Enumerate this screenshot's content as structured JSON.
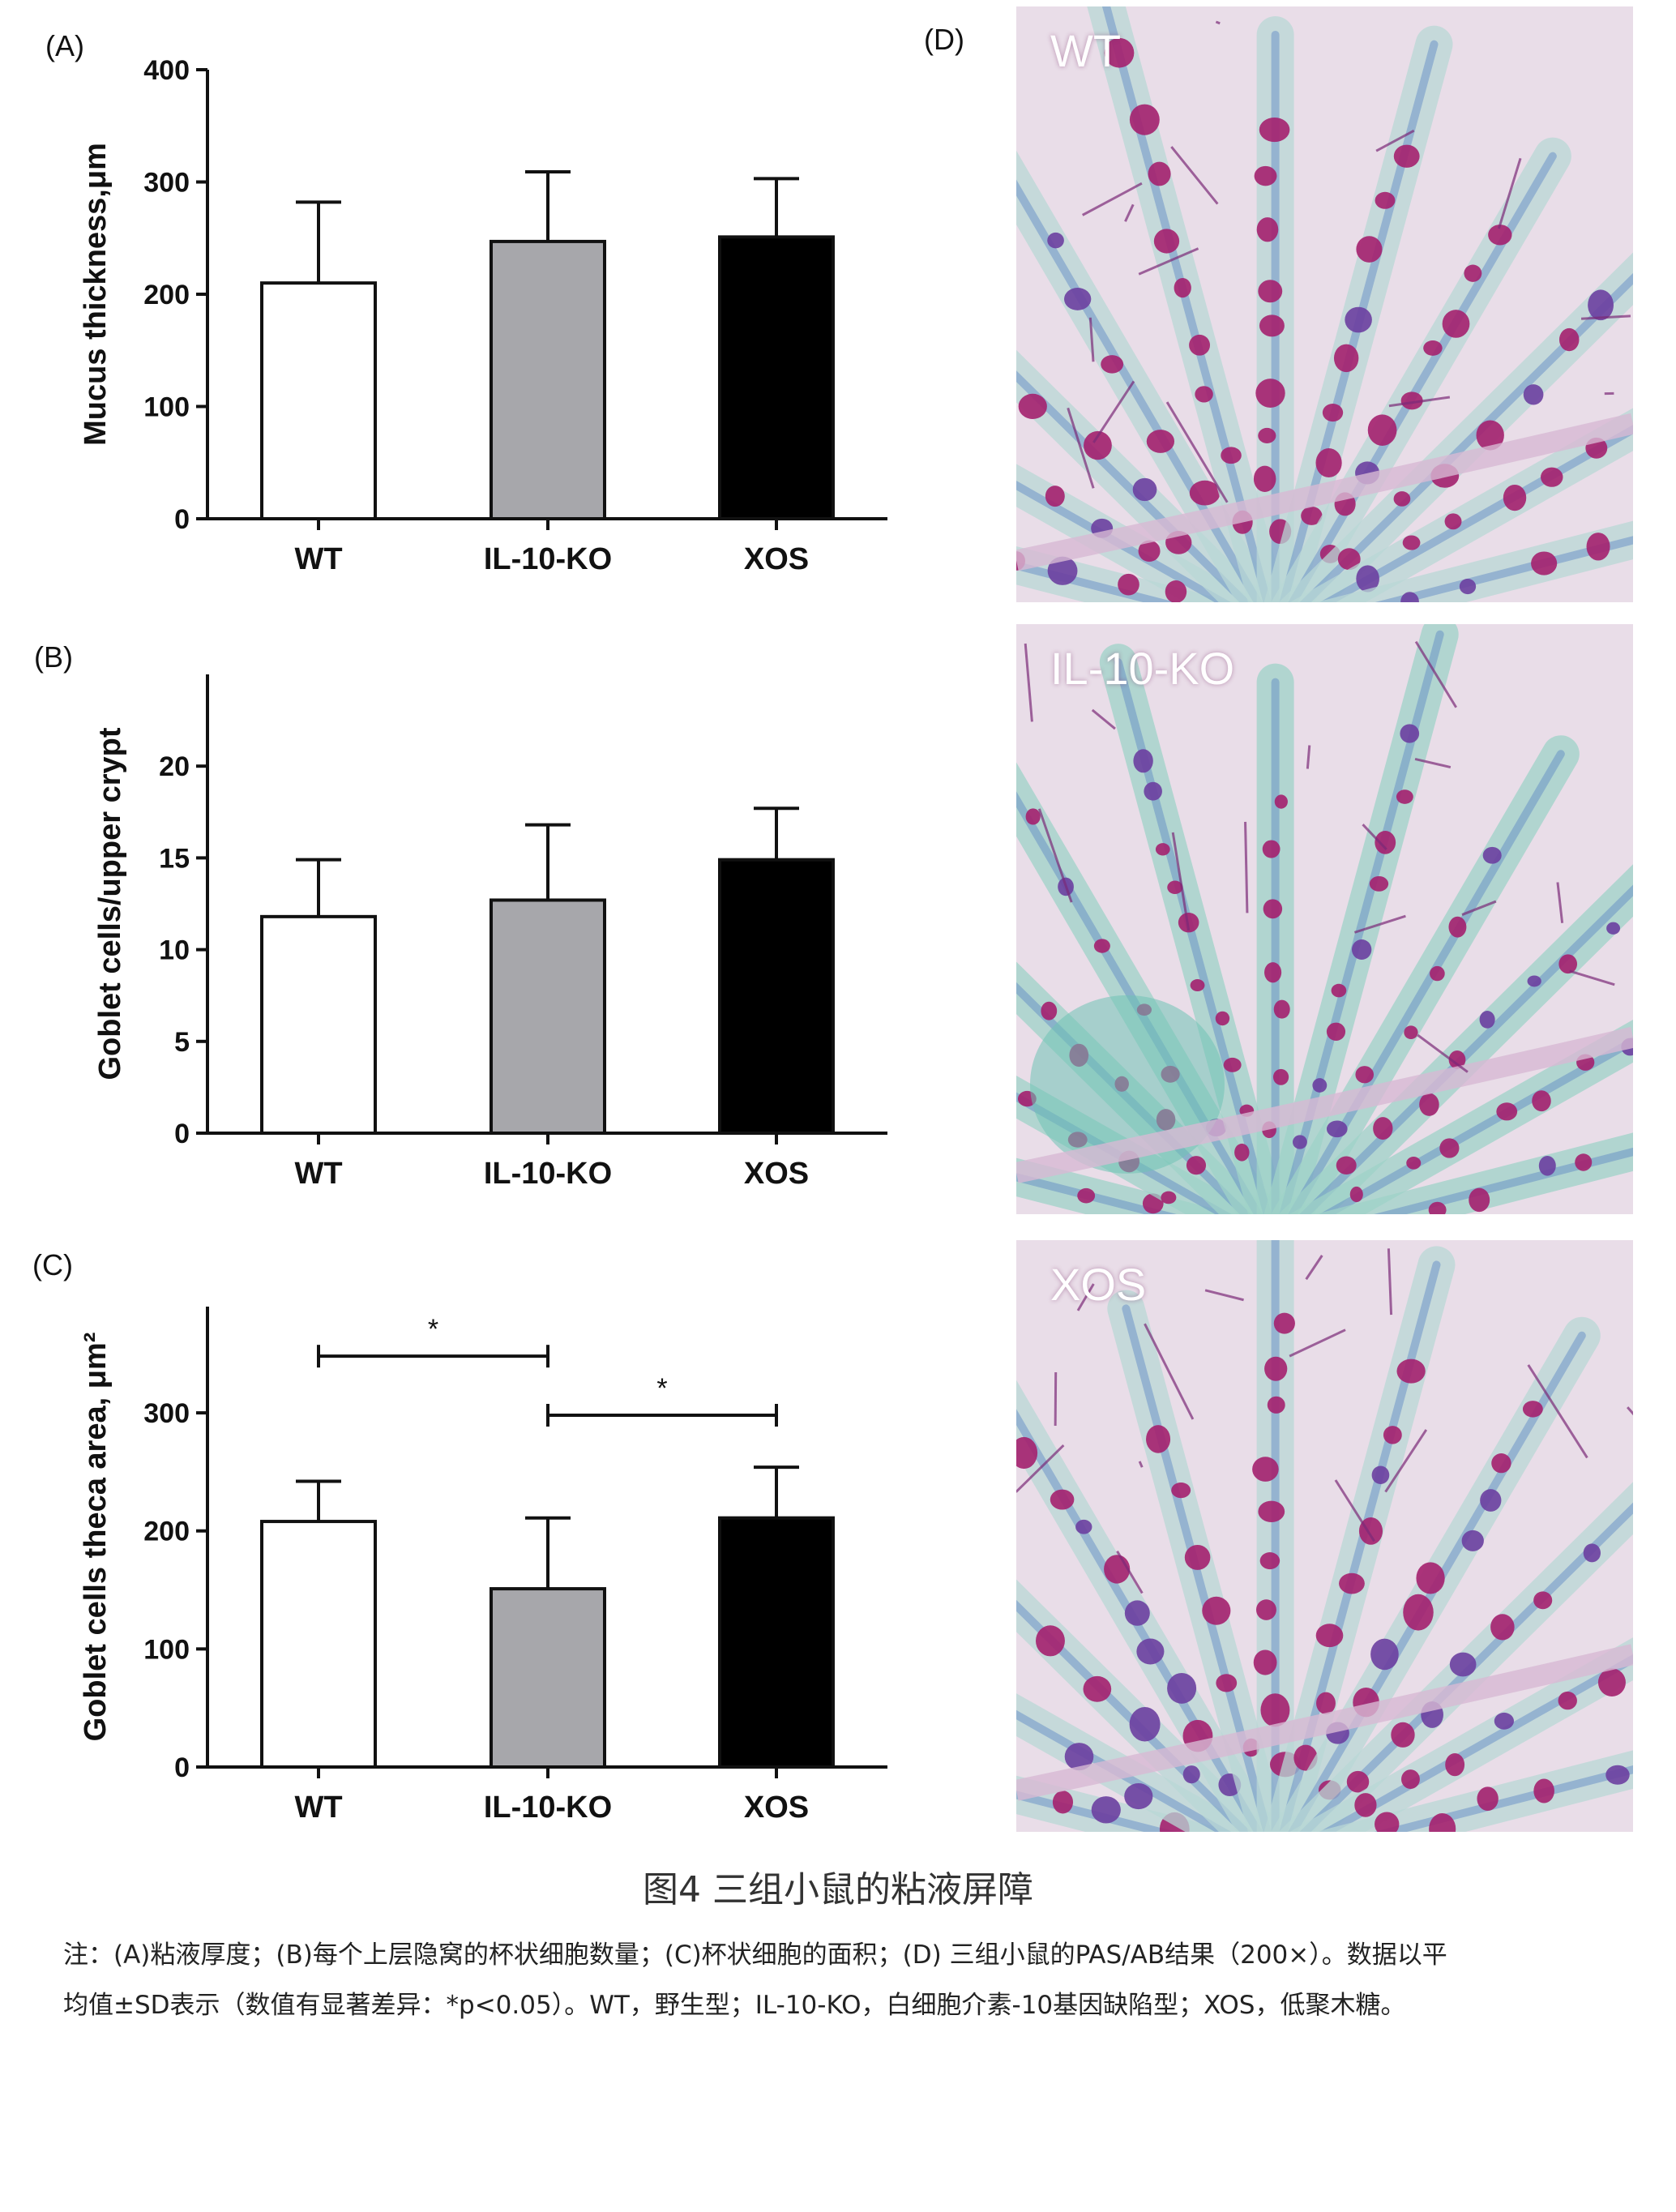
{
  "panels": [
    {
      "letter": "(A)"
    },
    {
      "letter": "(B)"
    },
    {
      "letter": "(C)"
    },
    {
      "letter": "(D)"
    }
  ],
  "chart_data": [
    {
      "type": "bar",
      "panel": "(A)",
      "categories": [
        "WT",
        "IL-10-KO",
        "XOS"
      ],
      "values": [
        210,
        247,
        251
      ],
      "errors": [
        72,
        62,
        52
      ],
      "ylabel": "Mucus thickness,μm",
      "ylim": [
        0,
        400
      ],
      "yticks": [
        0,
        100,
        200,
        300,
        400
      ],
      "bar_colors": [
        "#ffffff",
        "#a7a7ab",
        "#000000"
      ],
      "significance": []
    },
    {
      "type": "bar",
      "panel": "(B)",
      "categories": [
        "WT",
        "IL-10-KO",
        "XOS"
      ],
      "values": [
        11.8,
        12.7,
        14.9
      ],
      "errors": [
        3.1,
        4.1,
        2.8
      ],
      "ylabel": "Goblet cells/upper crypt",
      "ylim": [
        0,
        25
      ],
      "yticks": [
        0,
        5,
        10,
        15,
        20
      ],
      "bar_colors": [
        "#ffffff",
        "#a7a7ab",
        "#000000"
      ],
      "significance": []
    },
    {
      "type": "bar",
      "panel": "(C)",
      "categories": [
        "WT",
        "IL-10-KO",
        "XOS"
      ],
      "values": [
        208,
        151,
        211
      ],
      "errors": [
        34,
        60,
        43
      ],
      "ylabel": "Goblet cells theca area, μm²",
      "ylim": [
        0,
        390
      ],
      "yticks": [
        0,
        100,
        200,
        300
      ],
      "bar_colors": [
        "#ffffff",
        "#a7a7ab",
        "#000000"
      ],
      "significance": [
        {
          "from": 0,
          "to": 1,
          "level": 348,
          "label": "*"
        },
        {
          "from": 1,
          "to": 2,
          "level": 298,
          "label": "*"
        }
      ]
    }
  ],
  "micrographs": [
    {
      "label": "WT"
    },
    {
      "label": "IL-10-KO"
    },
    {
      "label": "XOS"
    }
  ],
  "figure": {
    "title": "图4 三组小鼠的粘液屏障",
    "note_line1": "注：(A)粘液厚度；(B)每个上层隐窝的杯状细胞数量；(C)杯状细胞的面积；(D) 三组小鼠的PAS/AB结果（200×）。数据以平",
    "note_line2": "均值±SD表示（数值有显著差异：*p<0.05）。WT，野生型；IL-10-KO，白细胞介素-10基因缺陷型；XOS，低聚木糖。"
  },
  "colors": {
    "tissue_bg": "#e9dde8",
    "goblet_magenta": "#a4206e",
    "alcian_blue": "#5d86c4",
    "cyan_stain": "#6fc2b4"
  }
}
